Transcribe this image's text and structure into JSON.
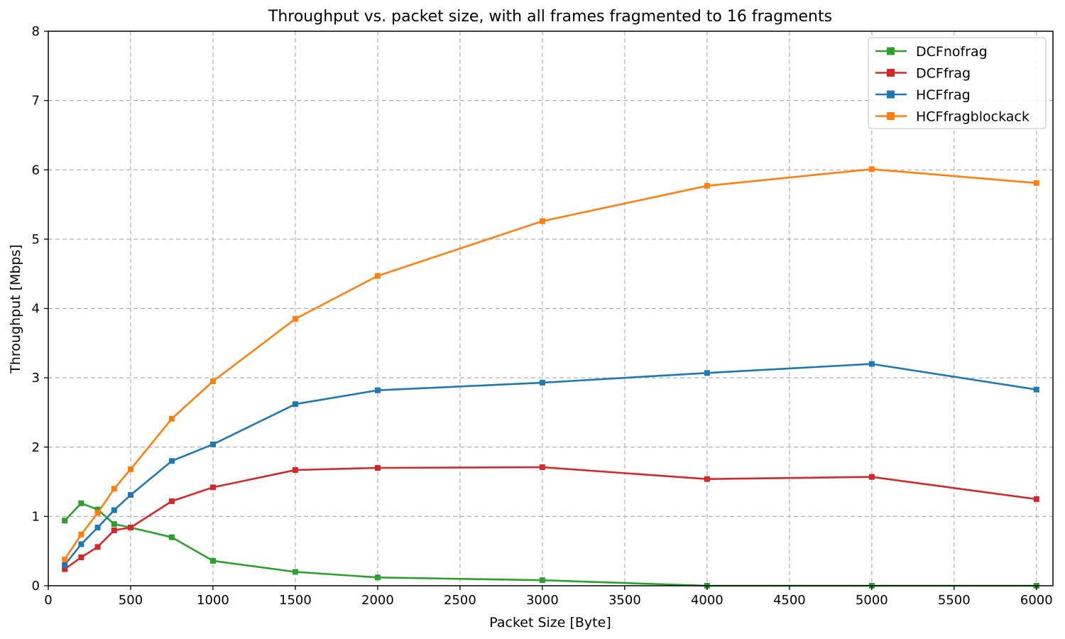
{
  "chart_data": {
    "type": "line",
    "title": "Throughput vs. packet size, with all frames fragmented to 16 fragments",
    "xlabel": "Packet Size [Byte]",
    "ylabel": "Throughput [Mbps]",
    "xlim": [
      0,
      6100
    ],
    "ylim": [
      0,
      8
    ],
    "xticks": [
      0,
      500,
      1000,
      1500,
      2000,
      2500,
      3000,
      3500,
      4000,
      4500,
      5000,
      5500,
      6000
    ],
    "yticks": [
      0,
      1,
      2,
      3,
      4,
      5,
      6,
      7,
      8
    ],
    "grid": true,
    "legend_position": "top-right",
    "x": [
      100,
      200,
      300,
      400,
      500,
      750,
      1000,
      1500,
      2000,
      3000,
      4000,
      5000,
      6000
    ],
    "series": [
      {
        "name": "DCFnofrag",
        "color": "#2ca02c",
        "marker": "square",
        "values": [
          0.94,
          1.19,
          1.1,
          0.89,
          0.84,
          0.7,
          0.36,
          0.2,
          0.12,
          0.08,
          0.0,
          0.0,
          0.0
        ]
      },
      {
        "name": "DCFfrag",
        "color": "#d62728",
        "marker": "square",
        "values": [
          0.24,
          0.41,
          0.56,
          0.8,
          0.84,
          1.22,
          1.42,
          1.67,
          1.7,
          1.71,
          1.54,
          1.57,
          1.25
        ]
      },
      {
        "name": "HCFfrag",
        "color": "#1f77b4",
        "marker": "square",
        "values": [
          0.3,
          0.6,
          0.84,
          1.09,
          1.31,
          1.8,
          2.04,
          2.62,
          2.82,
          2.93,
          3.07,
          3.2,
          2.83
        ]
      },
      {
        "name": "HCFfragblockack",
        "color": "#ff7f0e",
        "marker": "square",
        "values": [
          0.38,
          0.74,
          1.05,
          1.4,
          1.68,
          2.41,
          2.95,
          3.85,
          4.47,
          5.26,
          5.77,
          6.01,
          5.81
        ]
      }
    ]
  }
}
